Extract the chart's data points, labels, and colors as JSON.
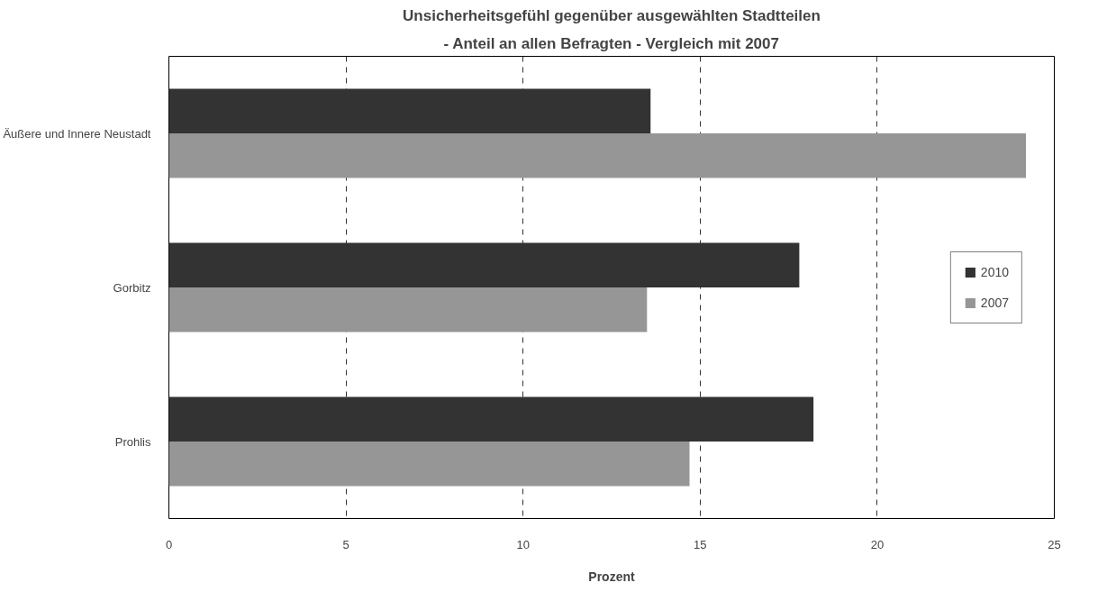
{
  "chart_data": {
    "type": "bar",
    "orientation": "horizontal",
    "title": "Unsicherheitsgefühl gegenüber ausgewählten Stadtteilen",
    "subtitle": "- Anteil an allen Befragten - Vergleich mit 2007",
    "xlabel": "Prozent",
    "categories": [
      "Äußere und Innere Neustadt",
      "Gorbitz",
      "Prohlis"
    ],
    "series": [
      {
        "name": "2010",
        "color": "#333333",
        "values": [
          13.6,
          17.8,
          18.2
        ]
      },
      {
        "name": "2007",
        "color": "#969696",
        "values": [
          24.2,
          13.5,
          14.7
        ]
      }
    ],
    "xlim": [
      0,
      25
    ],
    "xticks": [
      0,
      5,
      10,
      15,
      20,
      25
    ],
    "grid": "x",
    "legend": "right"
  }
}
